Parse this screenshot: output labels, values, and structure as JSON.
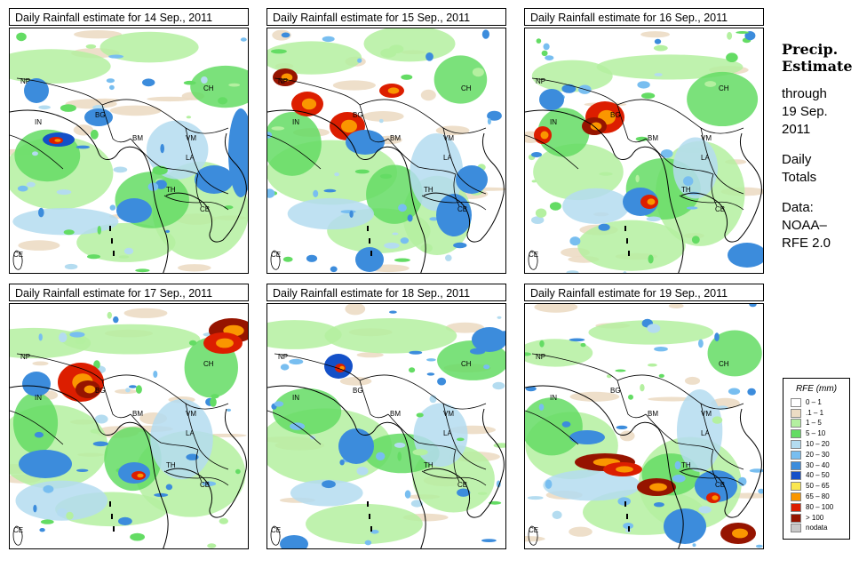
{
  "panels": [
    {
      "title": "Daily Rainfall estimate for  14 Sep., 2011",
      "intensity": "moderate"
    },
    {
      "title": "Daily Rainfall estimate for  15 Sep., 2011",
      "intensity": "heavy-north"
    },
    {
      "title": "Daily Rainfall estimate for  16 Sep., 2011",
      "intensity": "heavy-bg"
    },
    {
      "title": "Daily Rainfall estimate for  17 Sep., 2011",
      "intensity": "heavy-bg-ch"
    },
    {
      "title": "Daily Rainfall estimate for  18 Sep., 2011",
      "intensity": "light"
    },
    {
      "title": "Daily Rainfall estimate for  19 Sep., 2011",
      "intensity": "heavy-south"
    }
  ],
  "country_labels": {
    "np": "NP",
    "ch": "CH",
    "in": "IN",
    "bg": "BG",
    "bm": "BM",
    "vm": "VM",
    "la": "LA",
    "th": "TH",
    "cb": "CB",
    "ce": "CE"
  },
  "side_text": {
    "heading_line1": "Precip.",
    "heading_line2": "Estimate",
    "through": "through",
    "date_line1": "19 Sep.",
    "date_line2": "2011",
    "daily_line1": "Daily",
    "daily_line2": "Totals",
    "data_line1": "Data:",
    "data_line2": "NOAA–",
    "data_line3": "RFE 2.0"
  },
  "legend": {
    "title": "RFE (mm)",
    "items": [
      {
        "label": "0 – 1",
        "color": "#ffffff"
      },
      {
        "label": ".1 – 1",
        "color": "#ecdcc4"
      },
      {
        "label": "1 – 5",
        "color": "#b4f0a0"
      },
      {
        "label": "5 – 10",
        "color": "#64dc64"
      },
      {
        "label": "10 – 20",
        "color": "#b4dcf0"
      },
      {
        "label": "20 – 30",
        "color": "#78bef0"
      },
      {
        "label": "30 – 40",
        "color": "#3c8cdc"
      },
      {
        "label": "40 – 50",
        "color": "#1450c8"
      },
      {
        "label": "50 – 65",
        "color": "#fae650"
      },
      {
        "label": "65 – 80",
        "color": "#fa9600"
      },
      {
        "label": "80 – 100",
        "color": "#dc1e00"
      },
      {
        "label": "> 100",
        "color": "#961400"
      },
      {
        "label": "nodata",
        "color": "#c8c8c8"
      }
    ]
  }
}
